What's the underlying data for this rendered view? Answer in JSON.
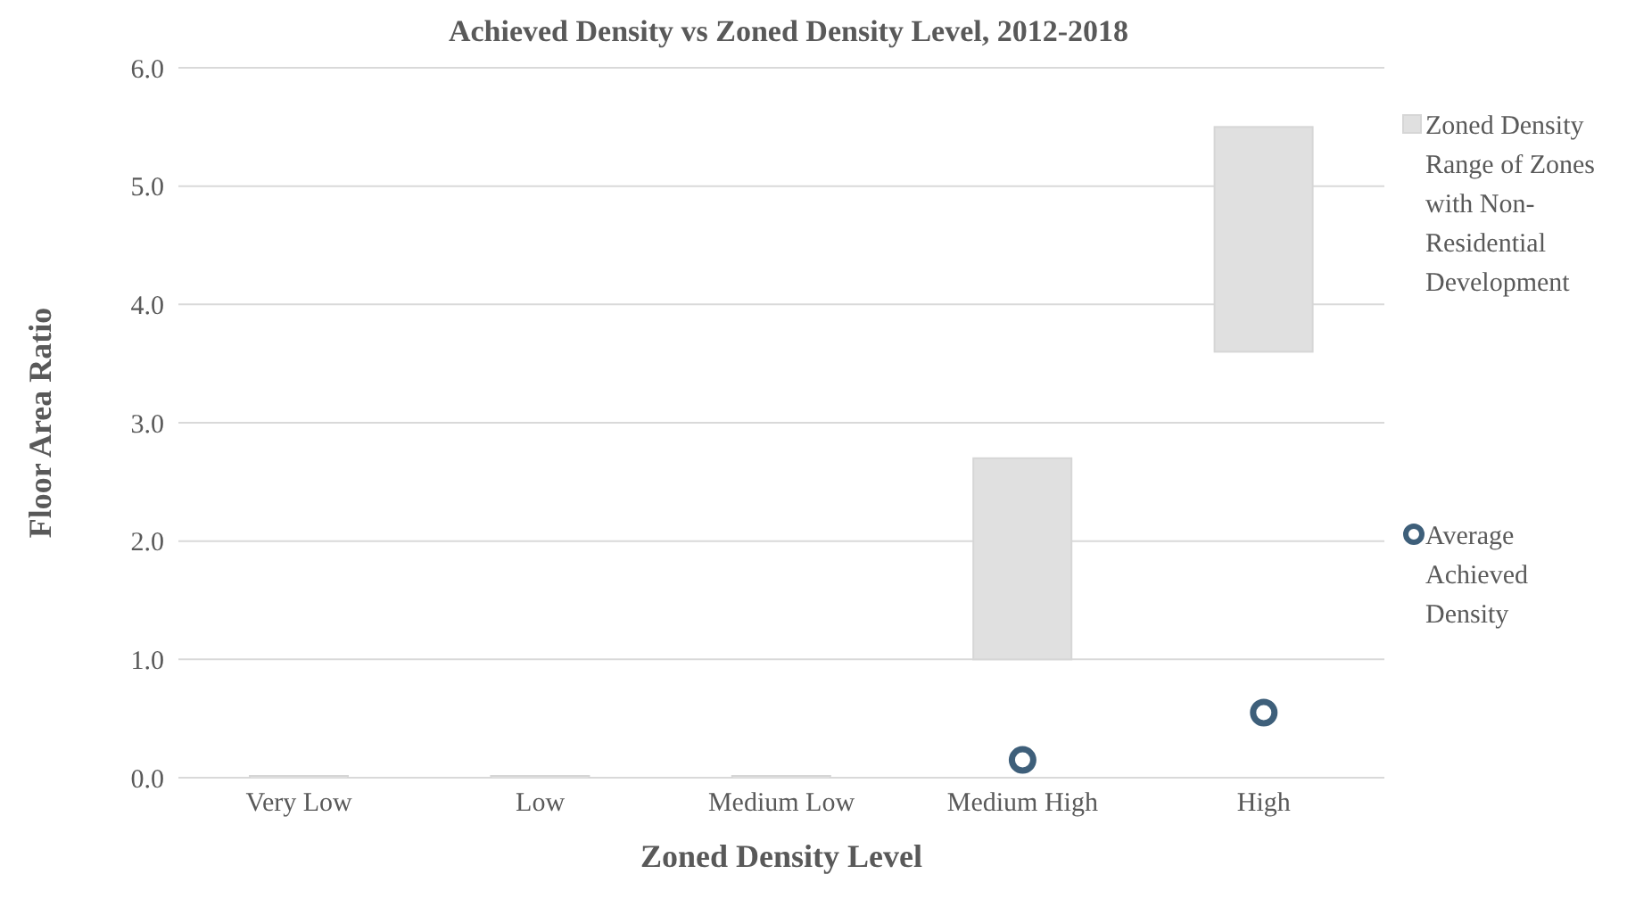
{
  "chart_data": {
    "type": "bar",
    "title": "Achieved Density vs Zoned Density Level, 2012-2018",
    "xlabel": "Zoned Density Level",
    "ylabel": "Floor Area Ratio",
    "categories": [
      "Very Low",
      "Low",
      "Medium Low",
      "Medium High",
      "High"
    ],
    "series": [
      {
        "name": "Zoned Density Range of Zones with Non-Residential Development",
        "color": "#e0e0e0",
        "base": [
          0,
          0,
          0,
          1.0,
          3.6
        ],
        "values": [
          0,
          0,
          0,
          1.7,
          1.9
        ]
      },
      {
        "name": "Average Achieved Density",
        "type": "scatter",
        "color": "#3e5f7a",
        "marker": "circle",
        "values": [
          null,
          null,
          null,
          0.15,
          0.55
        ]
      }
    ],
    "ylim": [
      0,
      6
    ],
    "yticks": [
      {
        "value": 0,
        "label": "0.0"
      },
      {
        "value": 1,
        "label": "1.0"
      },
      {
        "value": 2,
        "label": "2.0"
      },
      {
        "value": 3,
        "label": "3.0"
      },
      {
        "value": 4,
        "label": "4.0"
      },
      {
        "value": 5,
        "label": "5.0"
      },
      {
        "value": 6,
        "label": "6.0"
      }
    ],
    "grid": "y",
    "legend": "right"
  }
}
